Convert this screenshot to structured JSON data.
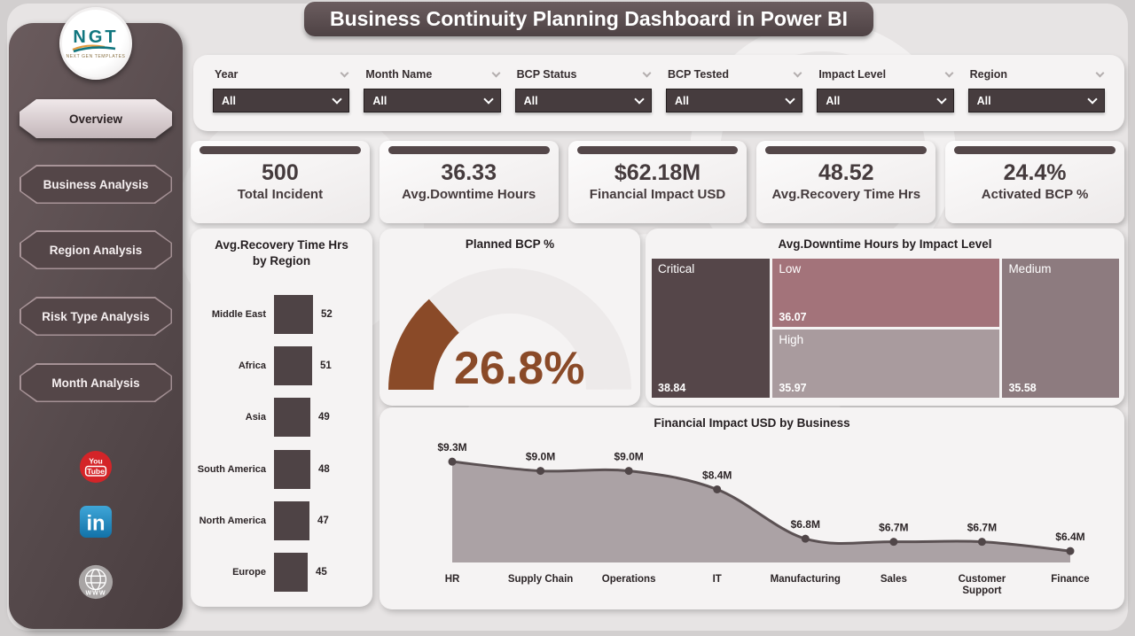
{
  "title": "Business Continuity Planning Dashboard in Power BI",
  "logo": {
    "text": "NGT",
    "subtext": "NEXT GEN TEMPLATES"
  },
  "sidebar": {
    "items": [
      {
        "label": "Overview",
        "active": true
      },
      {
        "label": "Business Analysis",
        "active": false
      },
      {
        "label": "Region Analysis",
        "active": false
      },
      {
        "label": "Risk Type Analysis",
        "active": false
      },
      {
        "label": "Month Analysis",
        "active": false
      }
    ],
    "social_icons": [
      "youtube-icon",
      "linkedin-icon",
      "website-globe-icon"
    ]
  },
  "filters": [
    {
      "label": "Year",
      "value": "All"
    },
    {
      "label": "Month Name",
      "value": "All"
    },
    {
      "label": "BCP Status",
      "value": "All"
    },
    {
      "label": "BCP Tested",
      "value": "All"
    },
    {
      "label": "Impact Level",
      "value": "All"
    },
    {
      "label": "Region",
      "value": "All"
    }
  ],
  "kpis": [
    {
      "value": "500",
      "label": "Total Incident"
    },
    {
      "value": "36.33",
      "label": "Avg.Downtime Hours"
    },
    {
      "value": "$62.18M",
      "label": "Financial Impact USD"
    },
    {
      "value": "48.52",
      "label": "Avg.Recovery Time Hrs"
    },
    {
      "value": "24.4%",
      "label": "Activated BCP %"
    }
  ],
  "chart_data": [
    {
      "type": "bar",
      "orientation": "horizontal",
      "title": "Avg.Recovery Time Hrs by Region",
      "categories": [
        "Middle East",
        "Africa",
        "Asia",
        "South America",
        "North America",
        "Europe"
      ],
      "values": [
        52,
        51,
        49,
        48,
        47,
        45
      ],
      "xlim": [
        0,
        52
      ],
      "bar_color": "#4e4345"
    },
    {
      "type": "gauge",
      "title": "Planned BCP %",
      "value": 26.8,
      "display": "26.8%",
      "range": [
        0,
        100
      ],
      "color": "#8a4a28",
      "track_color": "#edeaea"
    },
    {
      "type": "treemap",
      "title": "Avg.Downtime Hours by Impact Level",
      "items": [
        {
          "name": "Critical",
          "value": 38.84,
          "color": "#554649"
        },
        {
          "name": "Low",
          "value": 36.07,
          "color": "#a3737a"
        },
        {
          "name": "High",
          "value": 35.97,
          "color": "#a99b9e"
        },
        {
          "name": "Medium",
          "value": 35.58,
          "color": "#8d7b7f"
        }
      ]
    },
    {
      "type": "area",
      "title": "Financial Impact USD by Business",
      "categories": [
        "HR",
        "Supply Chain",
        "Operations",
        "IT",
        "Manufacturing",
        "Sales",
        "Customer Support",
        "Finance"
      ],
      "values": [
        9.3,
        9.0,
        9.0,
        8.4,
        6.8,
        6.7,
        6.7,
        6.4
      ],
      "labels": [
        "$9.3M",
        "$9.0M",
        "$9.0M",
        "$8.4M",
        "$6.8M",
        "$6.7M",
        "$6.7M",
        "$6.4M"
      ],
      "unit": "USD millions",
      "line_color": "#5b5153",
      "fill_color": "#aba2a5",
      "point_color": "#504648"
    }
  ],
  "colors": {
    "page_bg": "#d2cfcf",
    "panel_bg": "#e7e4e4",
    "card_bg": "#f5f3f3",
    "dark_ui": "#4a3f41",
    "accent_brown": "#8a4a28"
  }
}
